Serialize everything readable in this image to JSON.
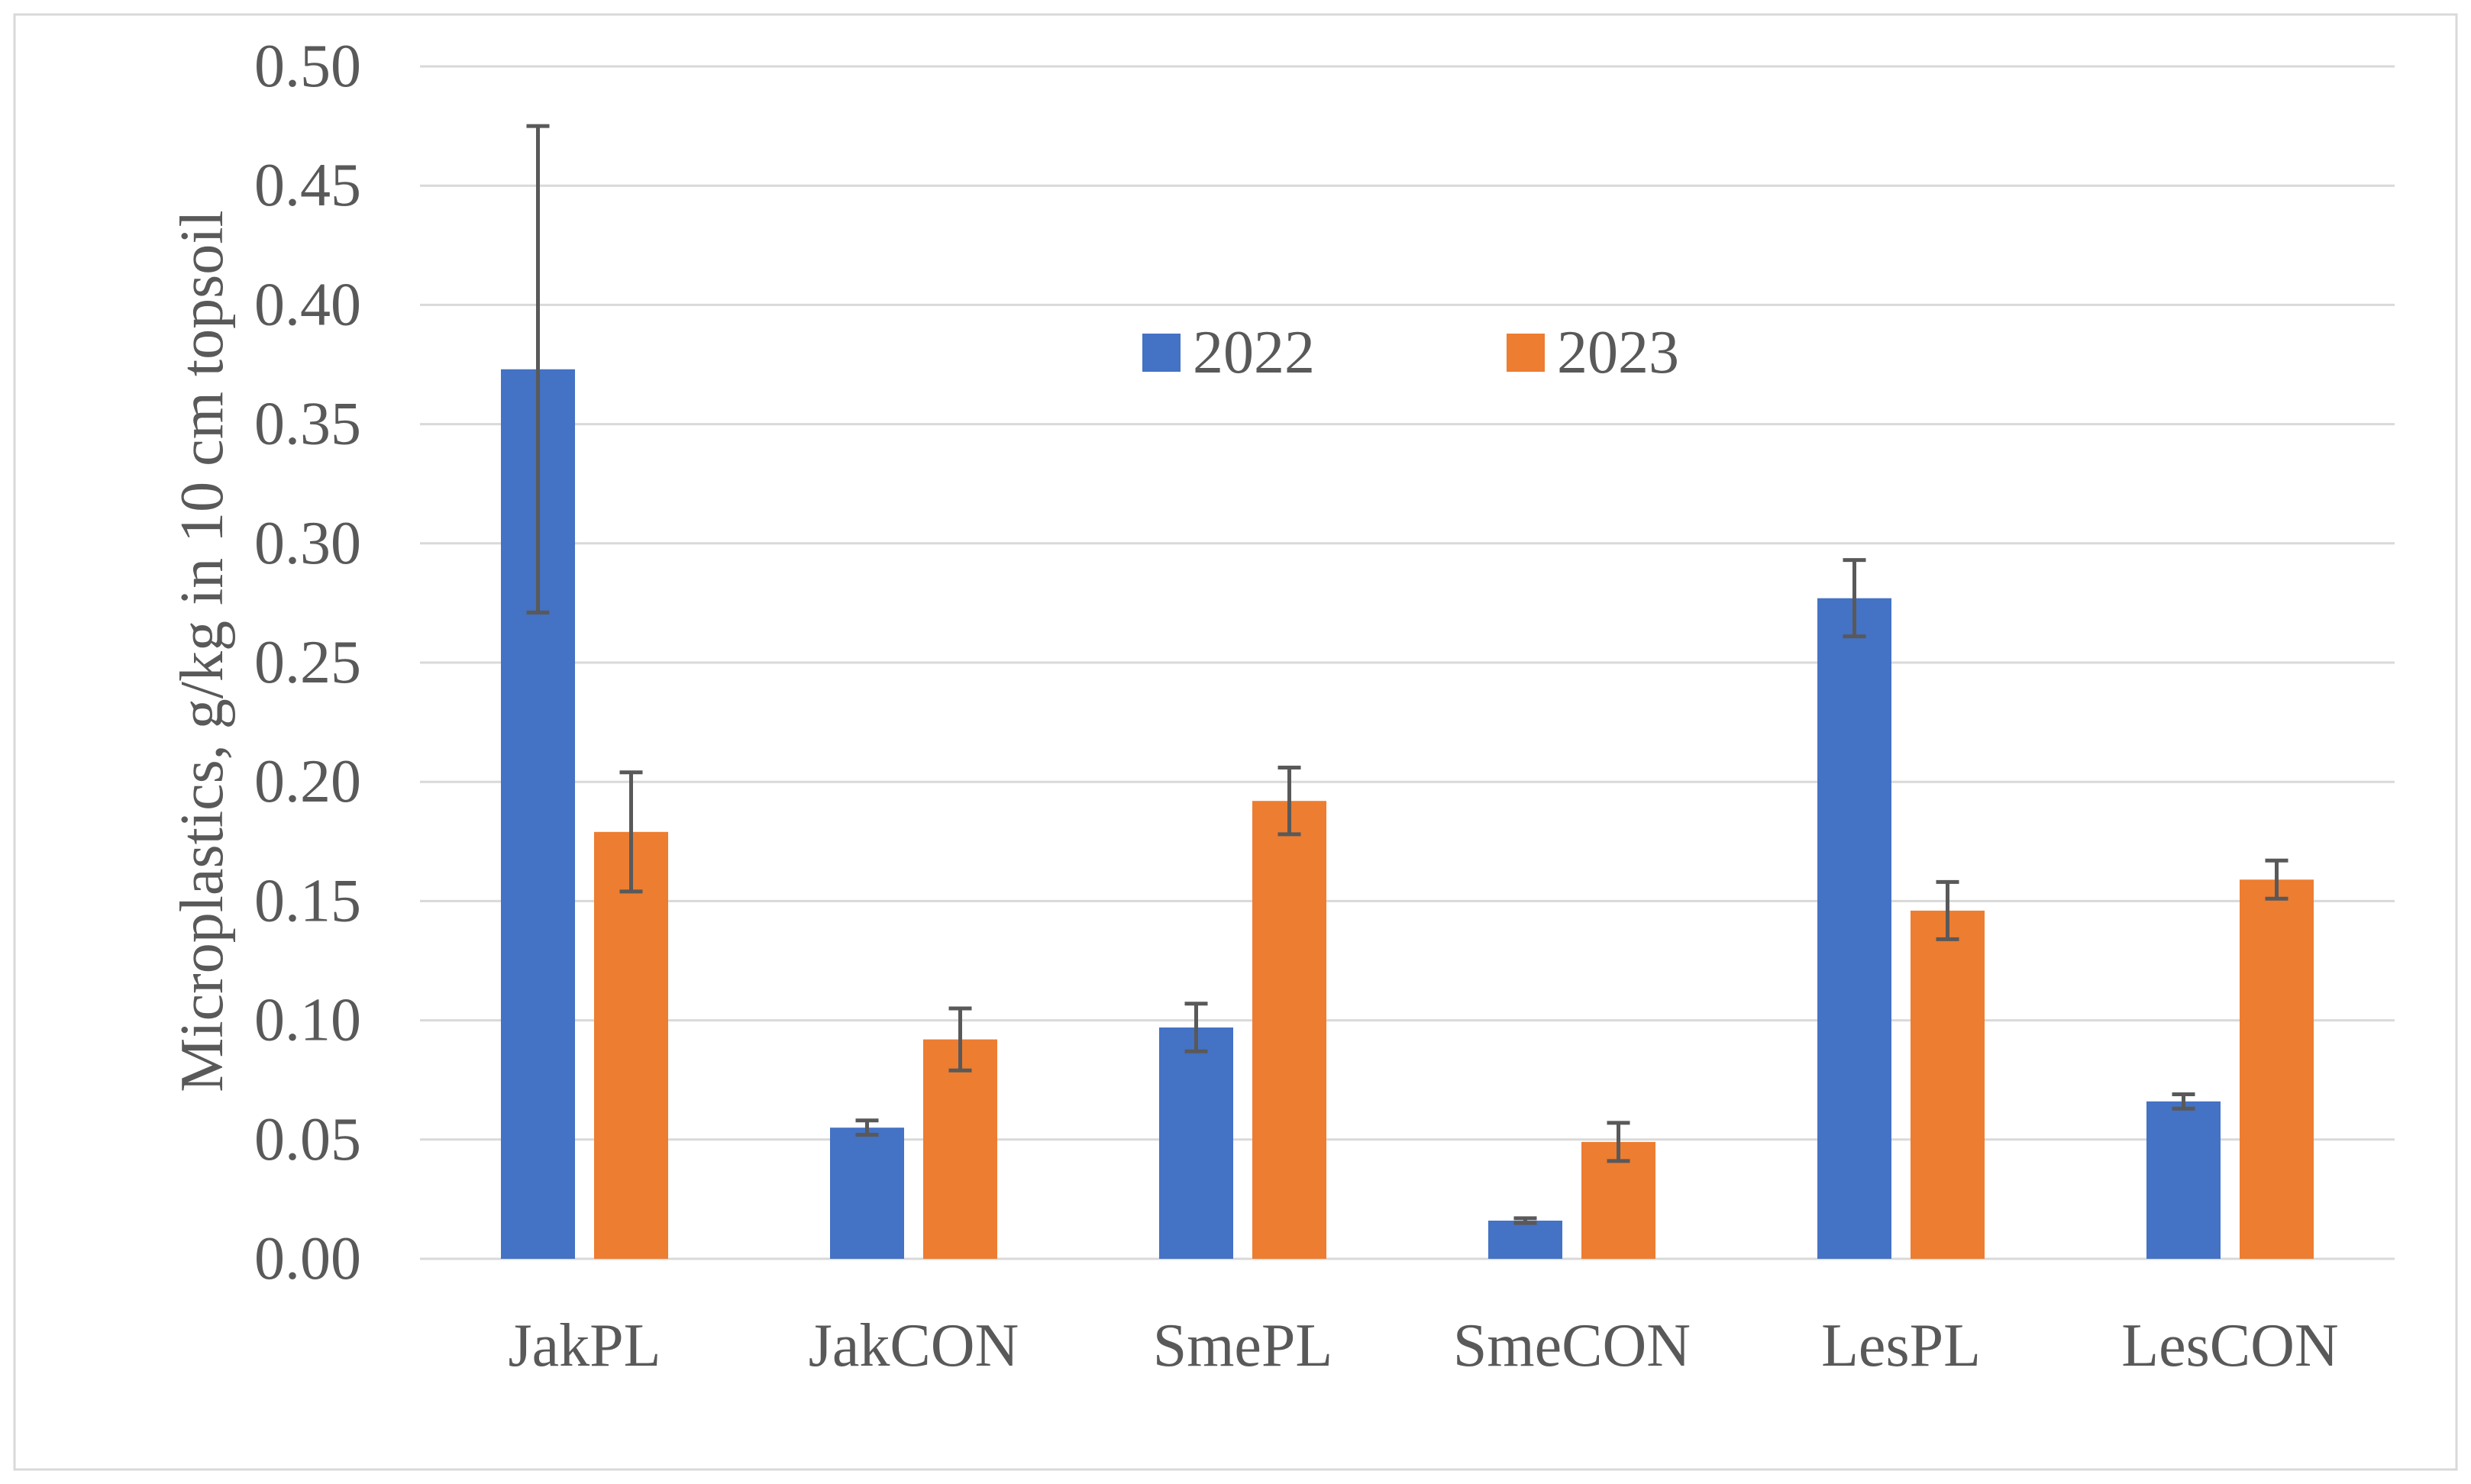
{
  "chart_data": {
    "type": "bar",
    "ylabel": "Microplastics, g/kg in 10 cm topsoil",
    "categories": [
      "JakPL",
      "JakCON",
      "SmePL",
      "SmeCON",
      "LesPL",
      "LesCON"
    ],
    "series": [
      {
        "name": "2022",
        "color": "#4472C4",
        "values": [
          0.373,
          0.055,
          0.097,
          0.016,
          0.277,
          0.066
        ],
        "errors": [
          0.102,
          0.003,
          0.01,
          0.001,
          0.016,
          0.003
        ]
      },
      {
        "name": "2023",
        "color": "#ED7D31",
        "values": [
          0.179,
          0.092,
          0.192,
          0.049,
          0.146,
          0.159
        ],
        "errors": [
          0.025,
          0.013,
          0.014,
          0.008,
          0.012,
          0.008
        ]
      }
    ],
    "ylim": [
      0,
      0.5
    ],
    "yticks": [
      0,
      0.05,
      0.1,
      0.15,
      0.2,
      0.25,
      0.3,
      0.35,
      0.4,
      0.45,
      0.5
    ],
    "ytick_labels": [
      "0.00",
      "0.05",
      "0.10",
      "0.15",
      "0.20",
      "0.25",
      "0.30",
      "0.35",
      "0.40",
      "0.45",
      "0.50"
    ],
    "grid": true,
    "legend": "top-center"
  }
}
